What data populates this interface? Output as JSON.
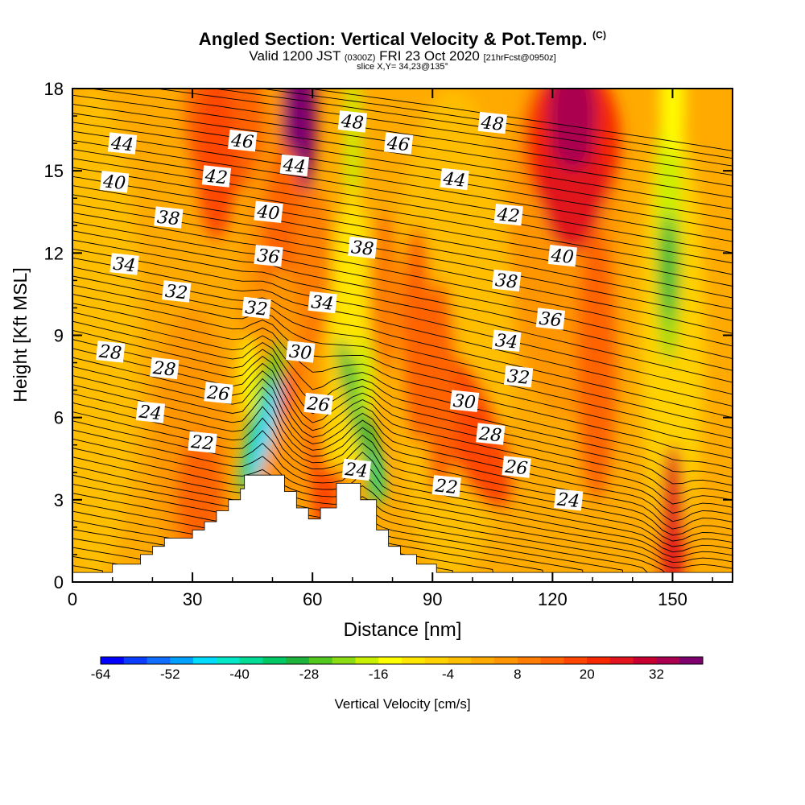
{
  "header": {
    "title": "Angled Section: Vertical Velocity & Pot.Temp.",
    "title_unit": "(C)",
    "valid_prefix": "Valid 1200 JST",
    "valid_utc": "(0300Z)",
    "valid_date": "FRI 23 Oct 2020",
    "forecast_info": "[21hrFcst@0950z]",
    "slice_info": "slice X,Y= 34,23@135°"
  },
  "chart_data": {
    "type": "heatmap",
    "xlabel": "Distance [nm]",
    "ylabel": "Height [Kft MSL]",
    "xlim": [
      0,
      165
    ],
    "ylim": [
      0,
      18
    ],
    "x_ticks": [
      0,
      30,
      60,
      90,
      120,
      150
    ],
    "y_ticks": [
      0,
      3,
      6,
      9,
      12,
      15,
      18
    ],
    "colorbar": {
      "label": "Vertical Velocity [cm/s]",
      "tick_labels": [
        "-64",
        "-52",
        "-40",
        "-28",
        "-16",
        "-4",
        "8",
        "20",
        "32"
      ],
      "tick_values": [
        -64,
        -52,
        -40,
        -28,
        -16,
        -4,
        8,
        20,
        32
      ],
      "min": -64,
      "max": 40,
      "step": 4,
      "colors": [
        "#0000ff",
        "#0a3cff",
        "#0f6eff",
        "#00a0ff",
        "#00dcff",
        "#00e8c8",
        "#00dc96",
        "#00c864",
        "#1eb43c",
        "#50c81e",
        "#8cdc14",
        "#c8f000",
        "#ffff00",
        "#ffe600",
        "#ffd200",
        "#ffbe00",
        "#ffaa00",
        "#ff9600",
        "#ff7d00",
        "#ff6400",
        "#ff4600",
        "#f52800",
        "#e1141e",
        "#c80032",
        "#aa0050",
        "#7d006e"
      ]
    },
    "theta_contour_labels": [
      {
        "text": "44",
        "x": 12.5,
        "y": 16.0
      },
      {
        "text": "46",
        "x": 42.5,
        "y": 16.1
      },
      {
        "text": "48",
        "x": 70.0,
        "y": 16.8
      },
      {
        "text": "48",
        "x": 105.0,
        "y": 16.75
      },
      {
        "text": "46",
        "x": 81.5,
        "y": 16.0
      },
      {
        "text": "40",
        "x": 10.5,
        "y": 14.6
      },
      {
        "text": "42",
        "x": 36.0,
        "y": 14.8
      },
      {
        "text": "44",
        "x": 55.5,
        "y": 15.2
      },
      {
        "text": "44",
        "x": 95.5,
        "y": 14.7
      },
      {
        "text": "38",
        "x": 24.0,
        "y": 13.3
      },
      {
        "text": "40",
        "x": 49.0,
        "y": 13.5
      },
      {
        "text": "42",
        "x": 109.0,
        "y": 13.4
      },
      {
        "text": "38",
        "x": 72.5,
        "y": 12.2
      },
      {
        "text": "40",
        "x": 122.5,
        "y": 11.9
      },
      {
        "text": "34",
        "x": 13.0,
        "y": 11.6
      },
      {
        "text": "36",
        "x": 49.0,
        "y": 11.9
      },
      {
        "text": "38",
        "x": 108.5,
        "y": 11.0
      },
      {
        "text": "32",
        "x": 26.0,
        "y": 10.6
      },
      {
        "text": "32",
        "x": 46.0,
        "y": 10.0
      },
      {
        "text": "34",
        "x": 62.5,
        "y": 10.2
      },
      {
        "text": "36",
        "x": 119.5,
        "y": 9.6
      },
      {
        "text": "34",
        "x": 108.5,
        "y": 8.8
      },
      {
        "text": "28",
        "x": 9.5,
        "y": 8.4
      },
      {
        "text": "28",
        "x": 23.0,
        "y": 7.8
      },
      {
        "text": "30",
        "x": 57.0,
        "y": 8.4
      },
      {
        "text": "32",
        "x": 111.5,
        "y": 7.5
      },
      {
        "text": "26",
        "x": 36.5,
        "y": 6.9
      },
      {
        "text": "24",
        "x": 19.5,
        "y": 6.2
      },
      {
        "text": "30",
        "x": 98.0,
        "y": 6.6
      },
      {
        "text": "26",
        "x": 61.5,
        "y": 6.5
      },
      {
        "text": "28",
        "x": 104.5,
        "y": 5.4
      },
      {
        "text": "22",
        "x": 32.5,
        "y": 5.1
      },
      {
        "text": "24",
        "x": 71.0,
        "y": 4.1
      },
      {
        "text": "26",
        "x": 111.0,
        "y": 4.2
      },
      {
        "text": "22",
        "x": 93.5,
        "y": 3.5
      },
      {
        "text": "24",
        "x": 124.0,
        "y": 3.0
      }
    ],
    "terrain_kft": [
      [
        0,
        0.35
      ],
      [
        10,
        0.35
      ],
      [
        10,
        0.65
      ],
      [
        17,
        0.65
      ],
      [
        17,
        1.0
      ],
      [
        20,
        1.0
      ],
      [
        20,
        1.3
      ],
      [
        23,
        1.3
      ],
      [
        23,
        1.6
      ],
      [
        30,
        1.6
      ],
      [
        30,
        1.9
      ],
      [
        33,
        1.9
      ],
      [
        33,
        2.2
      ],
      [
        36,
        2.2
      ],
      [
        36,
        2.6
      ],
      [
        39,
        2.6
      ],
      [
        39,
        3.0
      ],
      [
        42,
        3.0
      ],
      [
        42,
        3.4
      ],
      [
        43,
        3.4
      ],
      [
        43,
        3.9
      ],
      [
        53,
        3.9
      ],
      [
        53,
        3.3
      ],
      [
        56,
        3.3
      ],
      [
        56,
        2.7
      ],
      [
        59,
        2.7
      ],
      [
        59,
        2.3
      ],
      [
        62,
        2.3
      ],
      [
        62,
        2.7
      ],
      [
        66,
        2.7
      ],
      [
        66,
        3.6
      ],
      [
        72,
        3.6
      ],
      [
        72,
        3.0
      ],
      [
        76,
        3.0
      ],
      [
        76,
        1.9
      ],
      [
        79,
        1.9
      ],
      [
        79,
        1.3
      ],
      [
        82,
        1.3
      ],
      [
        82,
        1.0
      ],
      [
        86,
        1.0
      ],
      [
        86,
        0.65
      ],
      [
        91,
        0.65
      ],
      [
        91,
        0.35
      ],
      [
        165,
        0.35
      ]
    ]
  }
}
